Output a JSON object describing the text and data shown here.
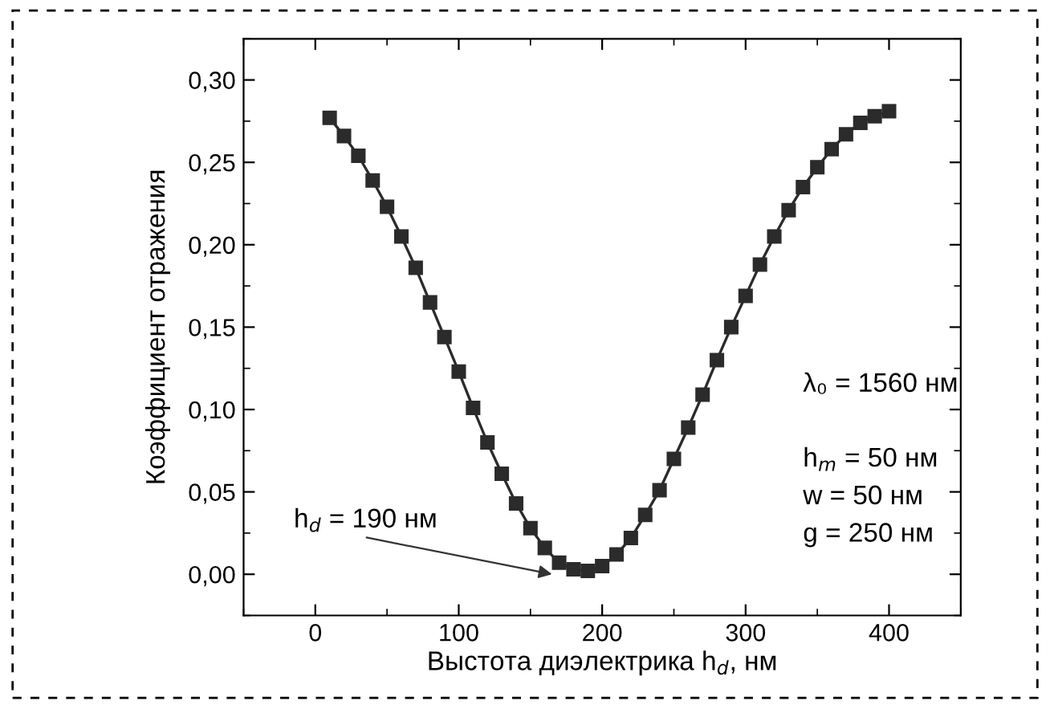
{
  "chart_data": {
    "type": "line",
    "xlabel": "Выстота диэлектрика h$_{d}$, нм",
    "ylabel": "Коэффициент отражения",
    "x": [
      10,
      20,
      30,
      40,
      50,
      60,
      70,
      80,
      90,
      100,
      110,
      120,
      130,
      140,
      150,
      160,
      170,
      180,
      190,
      200,
      210,
      220,
      230,
      240,
      250,
      260,
      270,
      280,
      290,
      300,
      310,
      320,
      330,
      340,
      350,
      360,
      370,
      380,
      390,
      400
    ],
    "series": [
      {
        "color": "#2b2b2b",
        "values": [
          0.277,
          0.266,
          0.254,
          0.239,
          0.223,
          0.205,
          0.186,
          0.165,
          0.144,
          0.123,
          0.101,
          0.08,
          0.061,
          0.043,
          0.028,
          0.016,
          0.007,
          0.003,
          0.002,
          0.005,
          0.012,
          0.022,
          0.036,
          0.051,
          0.07,
          0.089,
          0.109,
          0.13,
          0.15,
          0.169,
          0.188,
          0.205,
          0.221,
          0.235,
          0.247,
          0.258,
          0.267,
          0.274,
          0.278,
          0.281
        ]
      }
    ],
    "marker": "square",
    "line_style": "solid",
    "grid": false,
    "legend": false,
    "xlim": [
      -50,
      450
    ],
    "xticks": [
      0,
      100,
      200,
      300,
      400
    ],
    "ylim": [
      -0.025,
      0.325
    ],
    "yticks": [
      {
        "value": 0,
        "label": "0,00"
      },
      {
        "value": 0.05,
        "label": "0,05"
      },
      {
        "value": 0.1,
        "label": "0,10"
      },
      {
        "value": 0.15,
        "label": "0,15"
      },
      {
        "value": 0.2,
        "label": "0,20"
      },
      {
        "value": 0.25,
        "label": "0,25"
      },
      {
        "value": 0.3,
        "label": "0,30"
      }
    ],
    "annotations": [
      {
        "text": "h$_{d}$ = 190 нм",
        "x": 165,
        "y": 0.0
      },
      "λ₀ = 1560 нм",
      "h$_{m}$ = 50 нм",
      "w = 50 нм",
      "g = 250 нм"
    ]
  }
}
